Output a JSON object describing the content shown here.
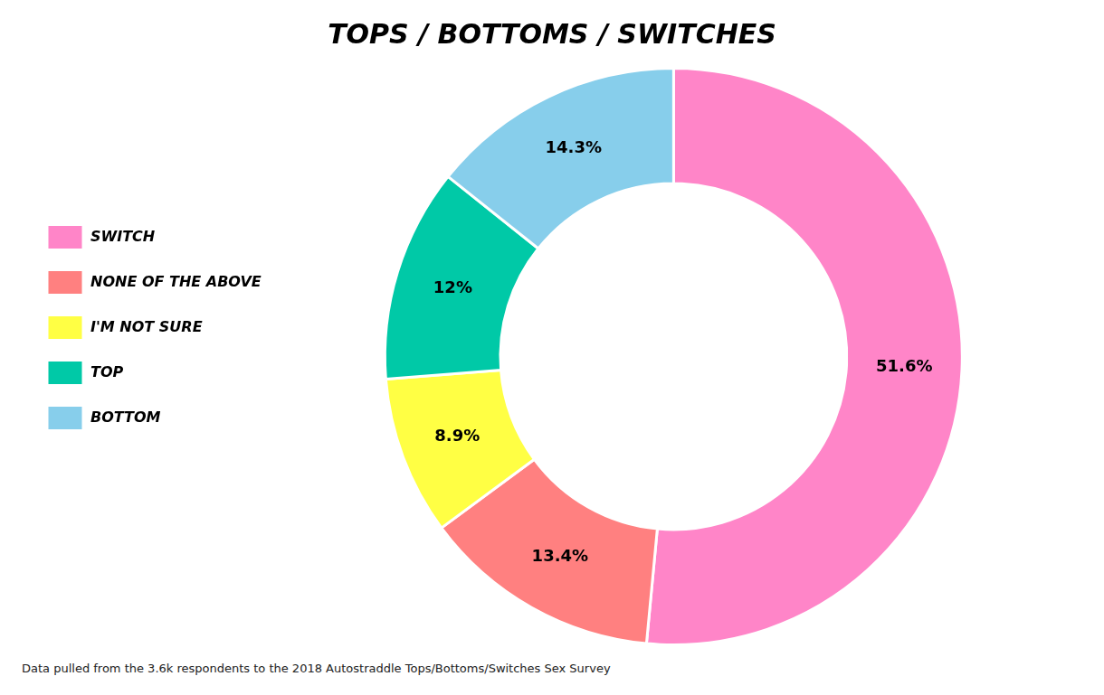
{
  "chart_data": {
    "type": "doughnut",
    "title": "TOPS / BOTTOMS / SWITCHES",
    "categories": [
      "SWITCH",
      "NONE OF THE ABOVE",
      "I'M NOT SURE",
      "TOP",
      "BOTTOM"
    ],
    "values": [
      51.6,
      13.4,
      8.9,
      12.0,
      14.3
    ],
    "value_labels": [
      "51.6%",
      "13.4%",
      "8.9%",
      "12%",
      "14.3%"
    ],
    "colors": [
      "#FF85C8",
      "#FF8080",
      "#FFFF44",
      "#00C9A7",
      "#87CEEB"
    ],
    "data_labels": true,
    "legend": "left",
    "annotations": [
      "Data pulled from the 3.6k respondents to the 2018 Autostraddle Tops/Bottoms/Switches Sex Survey"
    ]
  }
}
